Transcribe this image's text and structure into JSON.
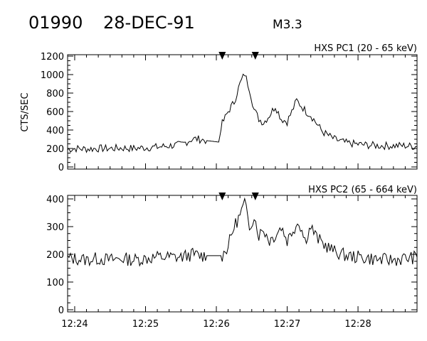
{
  "header": {
    "event_id": "01990",
    "date": "28-DEC-91",
    "flare_class": "M3.3"
  },
  "chart_data": [
    {
      "type": "line",
      "title": "HXS PC1 (20 - 65 keV)",
      "ylabel": "CTS/SEC",
      "xlabel": "",
      "x_unit": "UT time",
      "xlim": [
        "12:23:54",
        "12:28:50"
      ],
      "xticks": [
        "12:24",
        "12:25",
        "12:26",
        "12:27",
        "12:28"
      ],
      "ylim": [
        0,
        1200
      ],
      "yticks": [
        0,
        200,
        400,
        600,
        800,
        1000,
        1200
      ],
      "interval_markers": [
        "12:26:05",
        "12:26:33"
      ],
      "grid": false,
      "series": [
        {
          "x": [
            "12:23:54",
            "12:24:00",
            "12:24:10",
            "12:24:20",
            "12:24:30",
            "12:24:40",
            "12:24:50",
            "12:25:00",
            "12:25:10",
            "12:25:20",
            "12:25:30",
            "12:25:40",
            "12:25:46",
            "12:25:52",
            "12:26:02",
            "12:26:05",
            "12:26:10",
            "12:26:15",
            "12:26:20",
            "12:26:24",
            "12:26:28",
            "12:26:32",
            "12:26:36",
            "12:26:40",
            "12:26:45",
            "12:26:50",
            "12:26:55",
            "12:27:00",
            "12:27:04",
            "12:27:08",
            "12:27:12",
            "12:27:16",
            "12:27:20",
            "12:27:25",
            "12:27:30",
            "12:27:40",
            "12:27:50",
            "12:28:00",
            "12:28:10",
            "12:28:20",
            "12:28:30",
            "12:28:40",
            "12:28:50"
          ],
          "values": [
            190,
            200,
            195,
            200,
            200,
            205,
            200,
            210,
            215,
            230,
            240,
            305,
            300,
            285,
            270,
            470,
            600,
            700,
            900,
            1010,
            850,
            620,
            520,
            480,
            560,
            660,
            520,
            490,
            600,
            720,
            660,
            600,
            560,
            470,
            380,
            300,
            260,
            245,
            235,
            230,
            230,
            230,
            220
          ]
        }
      ]
    },
    {
      "type": "line",
      "title": "HXS PC2 (65 - 664 keV)",
      "ylabel": "",
      "xlabel": "",
      "x_unit": "UT time",
      "xlim": [
        "12:23:54",
        "12:28:50"
      ],
      "xticks": [
        "12:24",
        "12:25",
        "12:26",
        "12:27",
        "12:28"
      ],
      "ylim": [
        0,
        400
      ],
      "yticks": [
        0,
        100,
        200,
        300,
        400
      ],
      "interval_markers": [
        "12:26:05",
        "12:26:33"
      ],
      "grid": false,
      "series": [
        {
          "x": [
            "12:23:54",
            "12:24:00",
            "12:24:10",
            "12:24:20",
            "12:24:30",
            "12:24:40",
            "12:24:50",
            "12:25:00",
            "12:25:10",
            "12:25:20",
            "12:25:30",
            "12:25:40",
            "12:25:46",
            "12:25:52",
            "12:26:05",
            "12:26:10",
            "12:26:15",
            "12:26:20",
            "12:26:24",
            "12:26:28",
            "12:26:32",
            "12:26:36",
            "12:26:40",
            "12:26:45",
            "12:26:50",
            "12:26:55",
            "12:27:00",
            "12:27:05",
            "12:27:10",
            "12:27:15",
            "12:27:20",
            "12:27:25",
            "12:27:30",
            "12:27:40",
            "12:27:50",
            "12:28:00",
            "12:28:10",
            "12:28:20",
            "12:28:30",
            "12:28:40",
            "12:28:50"
          ],
          "values": [
            185,
            185,
            180,
            185,
            180,
            185,
            180,
            185,
            190,
            190,
            190,
            200,
            195,
            195,
            195,
            230,
            300,
            340,
            385,
            300,
            340,
            270,
            290,
            250,
            270,
            300,
            250,
            290,
            320,
            250,
            300,
            260,
            240,
            210,
            195,
            190,
            185,
            180,
            180,
            185,
            190
          ]
        }
      ]
    }
  ]
}
